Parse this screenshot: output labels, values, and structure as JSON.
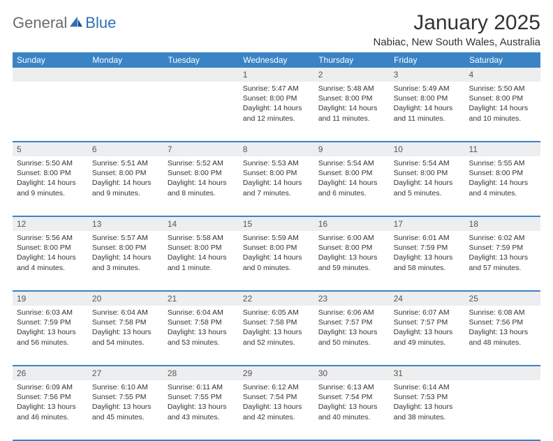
{
  "brand": {
    "part1": "General",
    "part2": "Blue",
    "text_color": "#6b6b6b",
    "accent_color": "#2d6fb5"
  },
  "title": "January 2025",
  "location": "Nabiac, New South Wales, Australia",
  "colors": {
    "header_bg": "#3a83c5",
    "header_text": "#ffffff",
    "daynum_bg": "#eceef0",
    "daynum_text": "#555555",
    "body_text": "#333333",
    "row_border": "#3a83c5",
    "page_bg": "#ffffff"
  },
  "weekdays": [
    "Sunday",
    "Monday",
    "Tuesday",
    "Wednesday",
    "Thursday",
    "Friday",
    "Saturday"
  ],
  "weeks": [
    [
      null,
      null,
      null,
      {
        "n": "1",
        "sr": "Sunrise: 5:47 AM",
        "ss": "Sunset: 8:00 PM",
        "dl1": "Daylight: 14 hours",
        "dl2": "and 12 minutes."
      },
      {
        "n": "2",
        "sr": "Sunrise: 5:48 AM",
        "ss": "Sunset: 8:00 PM",
        "dl1": "Daylight: 14 hours",
        "dl2": "and 11 minutes."
      },
      {
        "n": "3",
        "sr": "Sunrise: 5:49 AM",
        "ss": "Sunset: 8:00 PM",
        "dl1": "Daylight: 14 hours",
        "dl2": "and 11 minutes."
      },
      {
        "n": "4",
        "sr": "Sunrise: 5:50 AM",
        "ss": "Sunset: 8:00 PM",
        "dl1": "Daylight: 14 hours",
        "dl2": "and 10 minutes."
      }
    ],
    [
      {
        "n": "5",
        "sr": "Sunrise: 5:50 AM",
        "ss": "Sunset: 8:00 PM",
        "dl1": "Daylight: 14 hours",
        "dl2": "and 9 minutes."
      },
      {
        "n": "6",
        "sr": "Sunrise: 5:51 AM",
        "ss": "Sunset: 8:00 PM",
        "dl1": "Daylight: 14 hours",
        "dl2": "and 9 minutes."
      },
      {
        "n": "7",
        "sr": "Sunrise: 5:52 AM",
        "ss": "Sunset: 8:00 PM",
        "dl1": "Daylight: 14 hours",
        "dl2": "and 8 minutes."
      },
      {
        "n": "8",
        "sr": "Sunrise: 5:53 AM",
        "ss": "Sunset: 8:00 PM",
        "dl1": "Daylight: 14 hours",
        "dl2": "and 7 minutes."
      },
      {
        "n": "9",
        "sr": "Sunrise: 5:54 AM",
        "ss": "Sunset: 8:00 PM",
        "dl1": "Daylight: 14 hours",
        "dl2": "and 6 minutes."
      },
      {
        "n": "10",
        "sr": "Sunrise: 5:54 AM",
        "ss": "Sunset: 8:00 PM",
        "dl1": "Daylight: 14 hours",
        "dl2": "and 5 minutes."
      },
      {
        "n": "11",
        "sr": "Sunrise: 5:55 AM",
        "ss": "Sunset: 8:00 PM",
        "dl1": "Daylight: 14 hours",
        "dl2": "and 4 minutes."
      }
    ],
    [
      {
        "n": "12",
        "sr": "Sunrise: 5:56 AM",
        "ss": "Sunset: 8:00 PM",
        "dl1": "Daylight: 14 hours",
        "dl2": "and 4 minutes."
      },
      {
        "n": "13",
        "sr": "Sunrise: 5:57 AM",
        "ss": "Sunset: 8:00 PM",
        "dl1": "Daylight: 14 hours",
        "dl2": "and 3 minutes."
      },
      {
        "n": "14",
        "sr": "Sunrise: 5:58 AM",
        "ss": "Sunset: 8:00 PM",
        "dl1": "Daylight: 14 hours",
        "dl2": "and 1 minute."
      },
      {
        "n": "15",
        "sr": "Sunrise: 5:59 AM",
        "ss": "Sunset: 8:00 PM",
        "dl1": "Daylight: 14 hours",
        "dl2": "and 0 minutes."
      },
      {
        "n": "16",
        "sr": "Sunrise: 6:00 AM",
        "ss": "Sunset: 8:00 PM",
        "dl1": "Daylight: 13 hours",
        "dl2": "and 59 minutes."
      },
      {
        "n": "17",
        "sr": "Sunrise: 6:01 AM",
        "ss": "Sunset: 7:59 PM",
        "dl1": "Daylight: 13 hours",
        "dl2": "and 58 minutes."
      },
      {
        "n": "18",
        "sr": "Sunrise: 6:02 AM",
        "ss": "Sunset: 7:59 PM",
        "dl1": "Daylight: 13 hours",
        "dl2": "and 57 minutes."
      }
    ],
    [
      {
        "n": "19",
        "sr": "Sunrise: 6:03 AM",
        "ss": "Sunset: 7:59 PM",
        "dl1": "Daylight: 13 hours",
        "dl2": "and 56 minutes."
      },
      {
        "n": "20",
        "sr": "Sunrise: 6:04 AM",
        "ss": "Sunset: 7:58 PM",
        "dl1": "Daylight: 13 hours",
        "dl2": "and 54 minutes."
      },
      {
        "n": "21",
        "sr": "Sunrise: 6:04 AM",
        "ss": "Sunset: 7:58 PM",
        "dl1": "Daylight: 13 hours",
        "dl2": "and 53 minutes."
      },
      {
        "n": "22",
        "sr": "Sunrise: 6:05 AM",
        "ss": "Sunset: 7:58 PM",
        "dl1": "Daylight: 13 hours",
        "dl2": "and 52 minutes."
      },
      {
        "n": "23",
        "sr": "Sunrise: 6:06 AM",
        "ss": "Sunset: 7:57 PM",
        "dl1": "Daylight: 13 hours",
        "dl2": "and 50 minutes."
      },
      {
        "n": "24",
        "sr": "Sunrise: 6:07 AM",
        "ss": "Sunset: 7:57 PM",
        "dl1": "Daylight: 13 hours",
        "dl2": "and 49 minutes."
      },
      {
        "n": "25",
        "sr": "Sunrise: 6:08 AM",
        "ss": "Sunset: 7:56 PM",
        "dl1": "Daylight: 13 hours",
        "dl2": "and 48 minutes."
      }
    ],
    [
      {
        "n": "26",
        "sr": "Sunrise: 6:09 AM",
        "ss": "Sunset: 7:56 PM",
        "dl1": "Daylight: 13 hours",
        "dl2": "and 46 minutes."
      },
      {
        "n": "27",
        "sr": "Sunrise: 6:10 AM",
        "ss": "Sunset: 7:55 PM",
        "dl1": "Daylight: 13 hours",
        "dl2": "and 45 minutes."
      },
      {
        "n": "28",
        "sr": "Sunrise: 6:11 AM",
        "ss": "Sunset: 7:55 PM",
        "dl1": "Daylight: 13 hours",
        "dl2": "and 43 minutes."
      },
      {
        "n": "29",
        "sr": "Sunrise: 6:12 AM",
        "ss": "Sunset: 7:54 PM",
        "dl1": "Daylight: 13 hours",
        "dl2": "and 42 minutes."
      },
      {
        "n": "30",
        "sr": "Sunrise: 6:13 AM",
        "ss": "Sunset: 7:54 PM",
        "dl1": "Daylight: 13 hours",
        "dl2": "and 40 minutes."
      },
      {
        "n": "31",
        "sr": "Sunrise: 6:14 AM",
        "ss": "Sunset: 7:53 PM",
        "dl1": "Daylight: 13 hours",
        "dl2": "and 38 minutes."
      },
      null
    ]
  ]
}
